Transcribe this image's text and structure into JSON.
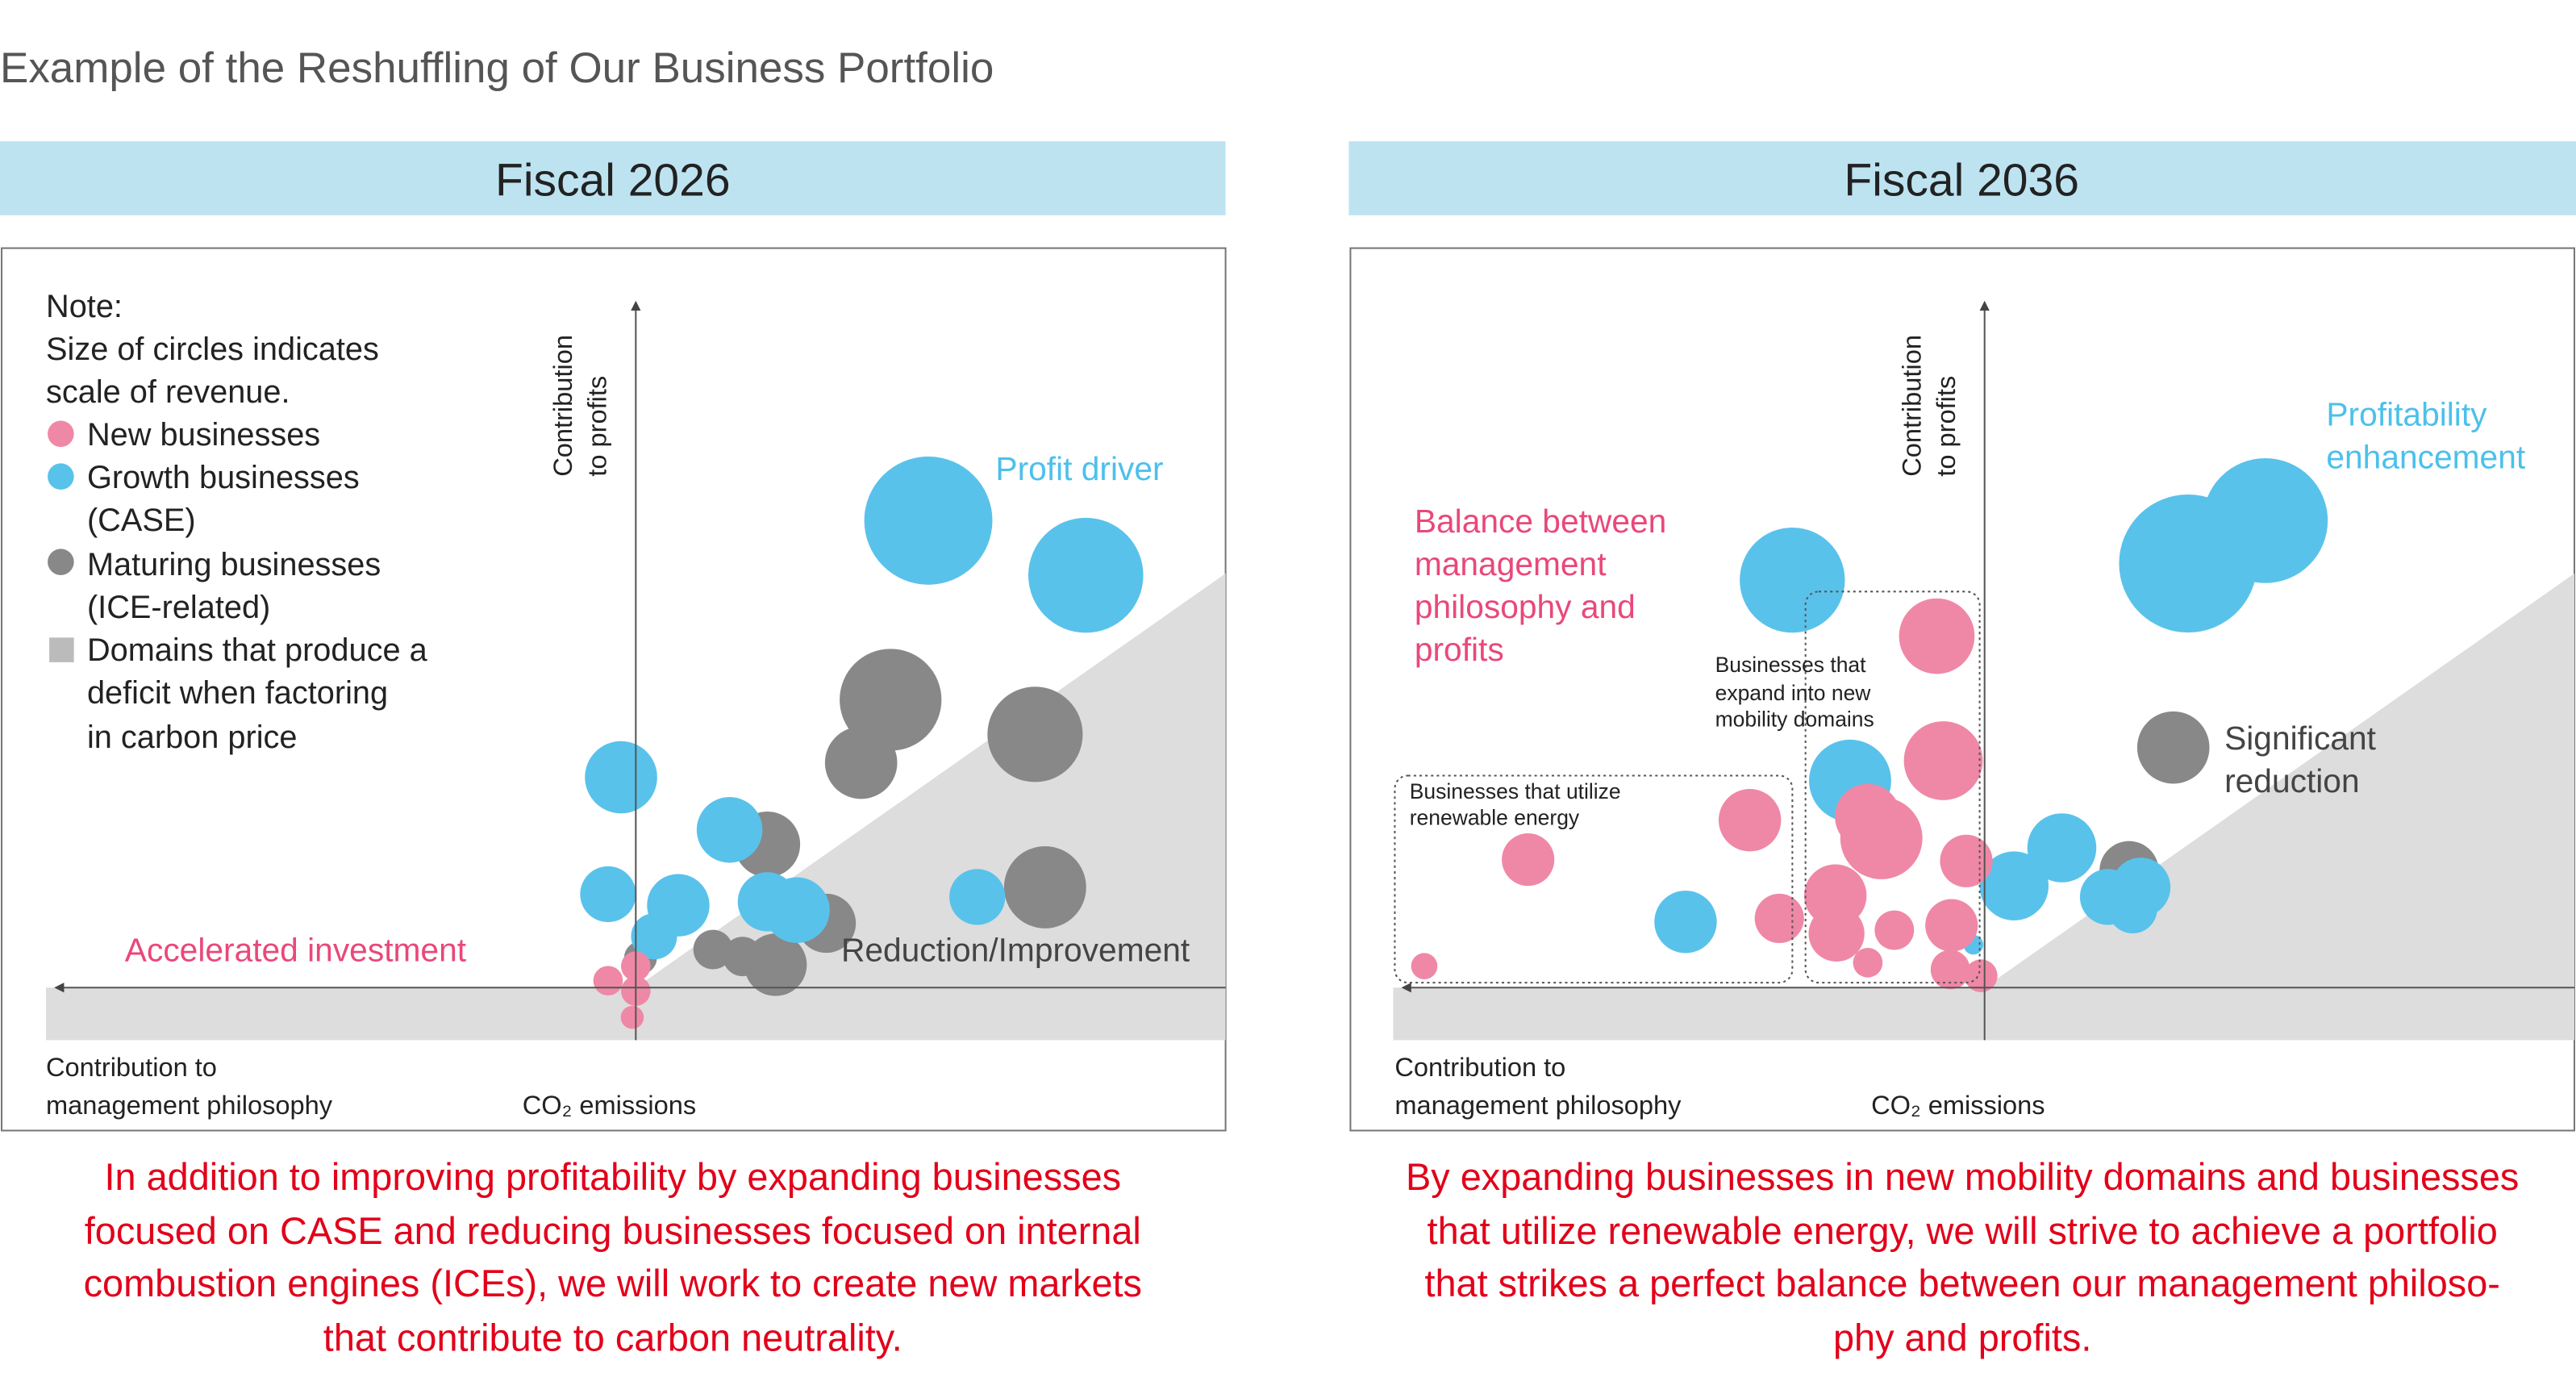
{
  "title": "Example of the Reshuffling of Our Business Portfolio",
  "legend": {
    "note": "Note:",
    "note_lines": [
      "Size of circles indicates",
      "scale of revenue."
    ],
    "items": [
      {
        "label_lines": [
          "New businesses"
        ],
        "color": "#ef88a6"
      },
      {
        "label_lines": [
          "Growth businesses",
          "(CASE)"
        ],
        "color": "#59c2eb"
      },
      {
        "label_lines": [
          "Maturing businesses",
          "(ICE-related)"
        ],
        "color": "#888888"
      },
      {
        "label_lines": [
          "Domains that produce a",
          "deficit when factoring",
          "in carbon price"
        ],
        "color": "#bbbbbb"
      }
    ]
  },
  "panels": [
    {
      "header": "Fiscal 2026",
      "y_axis_label": [
        "Contribution",
        "to profits"
      ],
      "x_axis_label": [
        "Contribution to",
        "management philosophy"
      ],
      "co2_label": "CO₂ emissions",
      "annotations": {
        "profit_driver": "Profit driver",
        "accelerated": "Accelerated investment",
        "reduction": "Reduction/Improvement"
      },
      "caption": [
        "In addition to improving profitability by expanding businesses",
        "focused on CASE and reducing businesses focused on internal",
        "combustion engines (ICEs), we will work to create new markets",
        "that contribute to carbon neutrality."
      ]
    },
    {
      "header": "Fiscal 2036",
      "y_axis_label": [
        "Contribution",
        "to profits"
      ],
      "x_axis_label": [
        "Contribution to",
        "management philosophy"
      ],
      "co2_label": "CO₂ emissions",
      "annotations": {
        "profitability": [
          "Profitability",
          "enhancement"
        ],
        "balance": [
          "Balance between",
          "management",
          "philosophy and",
          "profits"
        ],
        "significant": [
          "Significant",
          "reduction"
        ],
        "mobility_box": [
          "Businesses that",
          "expand into new",
          "mobility domains"
        ],
        "renewable_box": [
          "Businesses that utilize",
          "renewable energy"
        ]
      },
      "caption": [
        "By expanding businesses in new mobility domains and businesses",
        "that utilize renewable energy, we will strive to achieve a portfolio",
        "that strikes a perfect balance between our management philoso-",
        "phy and profits."
      ]
    }
  ],
  "colors": {
    "header_band": "#bde3f1",
    "deficit": "#dddddd",
    "caption": "#e2001a",
    "new": "#ef88a6",
    "growth": "#59c2eb",
    "maturing": "#888888"
  },
  "chart_data": [
    {
      "type": "scatter",
      "title": "Fiscal 2026",
      "xlabel": "Contribution to management philosophy / CO2 emissions",
      "ylabel": "Contribution to profits",
      "xlim": [
        -100,
        100
      ],
      "ylim": [
        -9,
        100
      ],
      "size_meaning": "scale of revenue",
      "series": [
        {
          "name": "Maturing businesses (ICE-related)",
          "color": "#888888",
          "points": [
            {
              "x": 43.2,
              "y": 41.6,
              "size": 31
            },
            {
              "x": 38.2,
              "y": 32.5,
              "size": 22
            },
            {
              "x": 67.7,
              "y": 36.6,
              "size": 29
            },
            {
              "x": 69.4,
              "y": 14.5,
              "size": 25
            },
            {
              "x": 22.3,
              "y": 20.7,
              "size": 20
            },
            {
              "x": 32.3,
              "y": 9.3,
              "size": 18
            },
            {
              "x": 13.1,
              "y": 5.5,
              "size": 12
            },
            {
              "x": 18.1,
              "y": 4.5,
              "size": 12
            },
            {
              "x": 23.7,
              "y": 3.3,
              "size": 19
            },
            {
              "x": 0.8,
              "y": 4.3,
              "size": 10
            }
          ]
        },
        {
          "name": "Growth businesses (CASE)",
          "color": "#59c2eb",
          "points": [
            {
              "x": 49.6,
              "y": 67.5,
              "size": 39
            },
            {
              "x": 76.3,
              "y": 59.6,
              "size": 35
            },
            {
              "x": -2.5,
              "y": 30.4,
              "size": 22
            },
            {
              "x": 15.9,
              "y": 22.8,
              "size": 20
            },
            {
              "x": -4.7,
              "y": 13.5,
              "size": 17
            },
            {
              "x": 7.2,
              "y": 11.9,
              "size": 19
            },
            {
              "x": 3.1,
              "y": 7.4,
              "size": 14
            },
            {
              "x": 22.3,
              "y": 12.4,
              "size": 18
            },
            {
              "x": 27.3,
              "y": 11.2,
              "size": 20
            },
            {
              "x": 57.9,
              "y": 13.1,
              "size": 17
            }
          ]
        },
        {
          "name": "New businesses",
          "color": "#ef88a6",
          "points": [
            {
              "x": 0,
              "y": 3.1,
              "size": 9
            },
            {
              "x": -4.7,
              "y": 1.0,
              "size": 9
            },
            {
              "x": 0,
              "y": -0.5,
              "size": 9
            },
            {
              "x": -0.6,
              "y": -4.3,
              "size": 7
            }
          ]
        }
      ]
    },
    {
      "type": "scatter",
      "title": "Fiscal 2036",
      "xlabel": "Contribution to management philosophy / CO2 emissions",
      "ylabel": "Contribution to profits",
      "xlim": [
        -100,
        100
      ],
      "ylim": [
        -9,
        100
      ],
      "size_meaning": "scale of revenue",
      "series": [
        {
          "name": "Maturing businesses (ICE-related)",
          "color": "#888888",
          "points": [
            {
              "x": 32.0,
              "y": 34.7,
              "size": 22
            },
            {
              "x": 24.5,
              "y": 16.9,
              "size": 18
            }
          ]
        },
        {
          "name": "Growth businesses (CASE)",
          "color": "#59c2eb",
          "points": [
            {
              "x": 34.5,
              "y": 61.3,
              "size": 42
            },
            {
              "x": 47.6,
              "y": 67.5,
              "size": 38
            },
            {
              "x": -32.6,
              "y": 58.9,
              "size": 32
            },
            {
              "x": -22.8,
              "y": 29.9,
              "size": 25
            },
            {
              "x": -50.7,
              "y": 9.5,
              "size": 19
            },
            {
              "x": 5.0,
              "y": 14.7,
              "size": 21
            },
            {
              "x": 13.1,
              "y": 20.2,
              "size": 21
            },
            {
              "x": 20.9,
              "y": 13.1,
              "size": 17
            },
            {
              "x": 26.5,
              "y": 14.5,
              "size": 18
            },
            {
              "x": 25.1,
              "y": 11.4,
              "size": 15
            },
            {
              "x": -1.9,
              "y": 6.2,
              "size": 6
            }
          ]
        },
        {
          "name": "New businesses",
          "color": "#ef88a6",
          "points": [
            {
              "x": -8.1,
              "y": 50.8,
              "size": 23
            },
            {
              "x": -7.0,
              "y": 32.8,
              "size": 24
            },
            {
              "x": -17.5,
              "y": 21.6,
              "size": 25
            },
            {
              "x": -19.8,
              "y": 24.7,
              "size": 20
            },
            {
              "x": -39.8,
              "y": 24.2,
              "size": 19
            },
            {
              "x": -77.4,
              "y": 18.5,
              "size": 16
            },
            {
              "x": -3.1,
              "y": 18.3,
              "size": 16
            },
            {
              "x": -25.3,
              "y": 13.3,
              "size": 19
            },
            {
              "x": -25.1,
              "y": 7.8,
              "size": 17
            },
            {
              "x": -34.8,
              "y": 10.0,
              "size": 15
            },
            {
              "x": -15.3,
              "y": 8.3,
              "size": 12
            },
            {
              "x": -5.6,
              "y": 9.0,
              "size": 16
            },
            {
              "x": -19.8,
              "y": 3.6,
              "size": 9
            },
            {
              "x": -5.8,
              "y": 2.6,
              "size": 12
            },
            {
              "x": -0.6,
              "y": 1.7,
              "size": 10
            },
            {
              "x": -95.0,
              "y": 3.1,
              "size": 8
            }
          ]
        }
      ]
    }
  ]
}
